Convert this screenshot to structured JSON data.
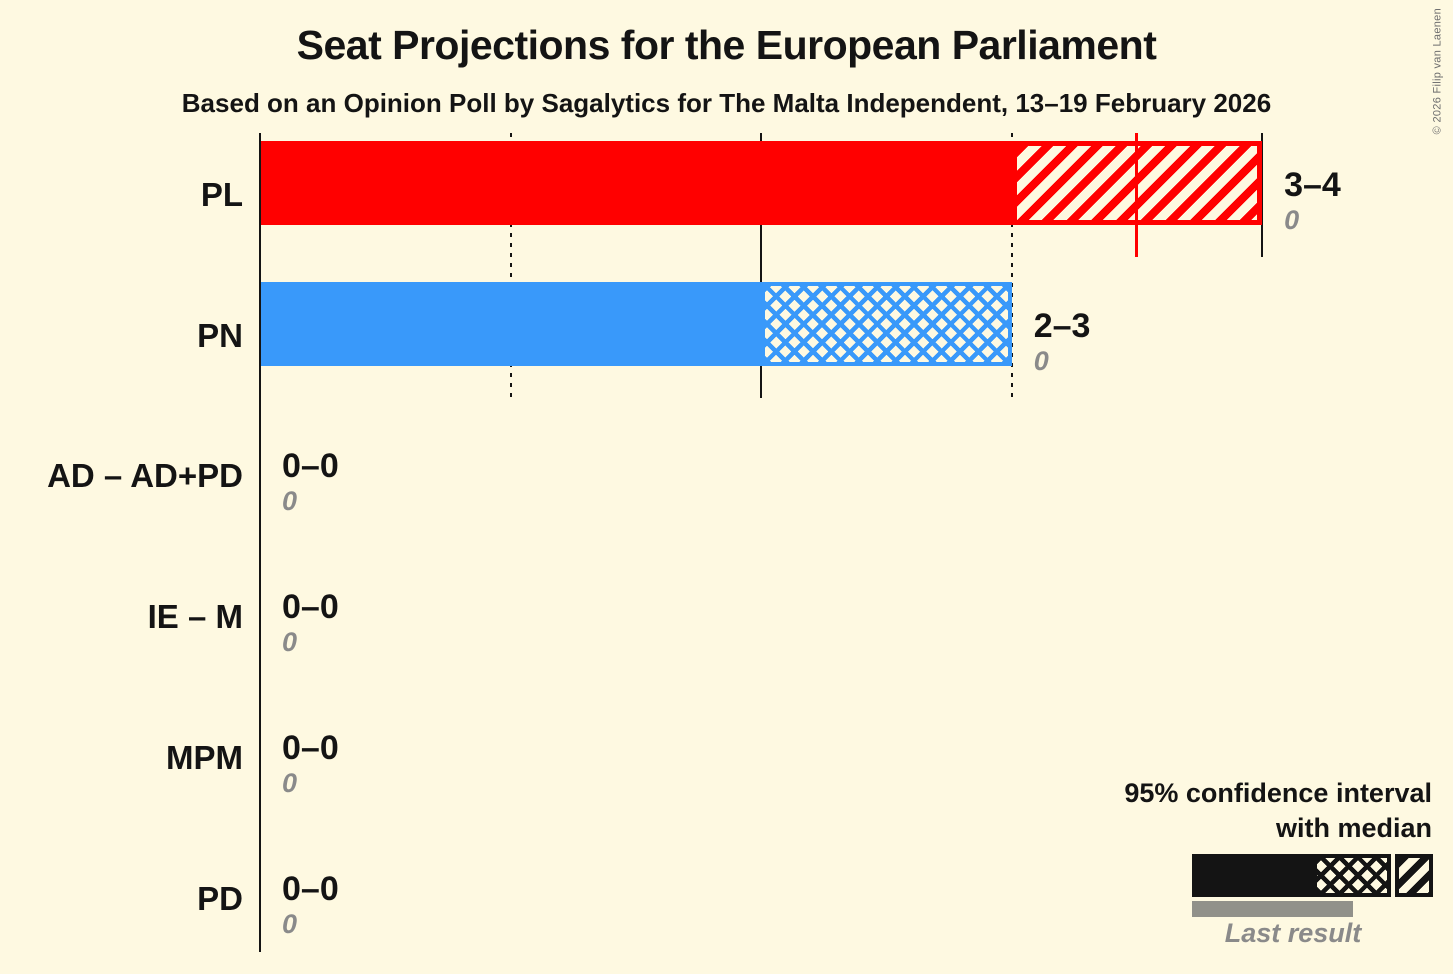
{
  "title": "Seat Projections for the European Parliament",
  "subtitle": "Based on an Opinion Poll by Sagalytics for The Malta Independent, 13–19 February 2026",
  "copyright": "© 2026 Filip van Laenen",
  "colors": {
    "background": "#FEF9E1",
    "pl_red": "#FF0000",
    "pn_blue": "#3999FA",
    "text_black": "#141414",
    "last_result_gray": "#8A8A8A",
    "legend_last_bar_gray": "#91918A"
  },
  "legend": {
    "ci_line1": "95% confidence interval",
    "ci_line2": "with median",
    "last_result": "Last result"
  },
  "chart_data": {
    "type": "bar",
    "title": "Seat Projections for the European Parliament",
    "subtitle": "Based on an Opinion Poll by Sagalytics for The Malta Independent, 13–19 February 2026",
    "unit": "seats",
    "xlim": [
      0,
      4
    ],
    "legend_note": "95% confidence interval with median; gray underbar = last result",
    "gridlines": [
      {
        "value": 1,
        "style": "dotted"
      },
      {
        "value": 2,
        "style": "solid"
      },
      {
        "value": 3,
        "style": "dotted"
      },
      {
        "value": 4,
        "style": "solid"
      }
    ],
    "rows": [
      {
        "party": "PL",
        "color": "#FF0000",
        "ci_low": 3,
        "ci_high": 4,
        "ci_label": "3–4",
        "median_line": 3.5,
        "hatch": "diagonal",
        "last_result": "0"
      },
      {
        "party": "PN",
        "color": "#3999FA",
        "ci_low": 2,
        "ci_high": 3,
        "ci_label": "2–3",
        "median_line": null,
        "hatch": "cross",
        "last_result": "0"
      },
      {
        "party": "AD – AD+PD",
        "color": null,
        "ci_low": 0,
        "ci_high": 0,
        "ci_label": "0–0",
        "median_line": null,
        "hatch": null,
        "last_result": "0"
      },
      {
        "party": "IE – M",
        "color": null,
        "ci_low": 0,
        "ci_high": 0,
        "ci_label": "0–0",
        "median_line": null,
        "hatch": null,
        "last_result": "0"
      },
      {
        "party": "MPM",
        "color": null,
        "ci_low": 0,
        "ci_high": 0,
        "ci_label": "0–0",
        "median_line": null,
        "hatch": null,
        "last_result": "0"
      },
      {
        "party": "PD",
        "color": null,
        "ci_low": 0,
        "ci_high": 0,
        "ci_label": "0–0",
        "median_line": null,
        "hatch": null,
        "last_result": "0"
      }
    ]
  }
}
